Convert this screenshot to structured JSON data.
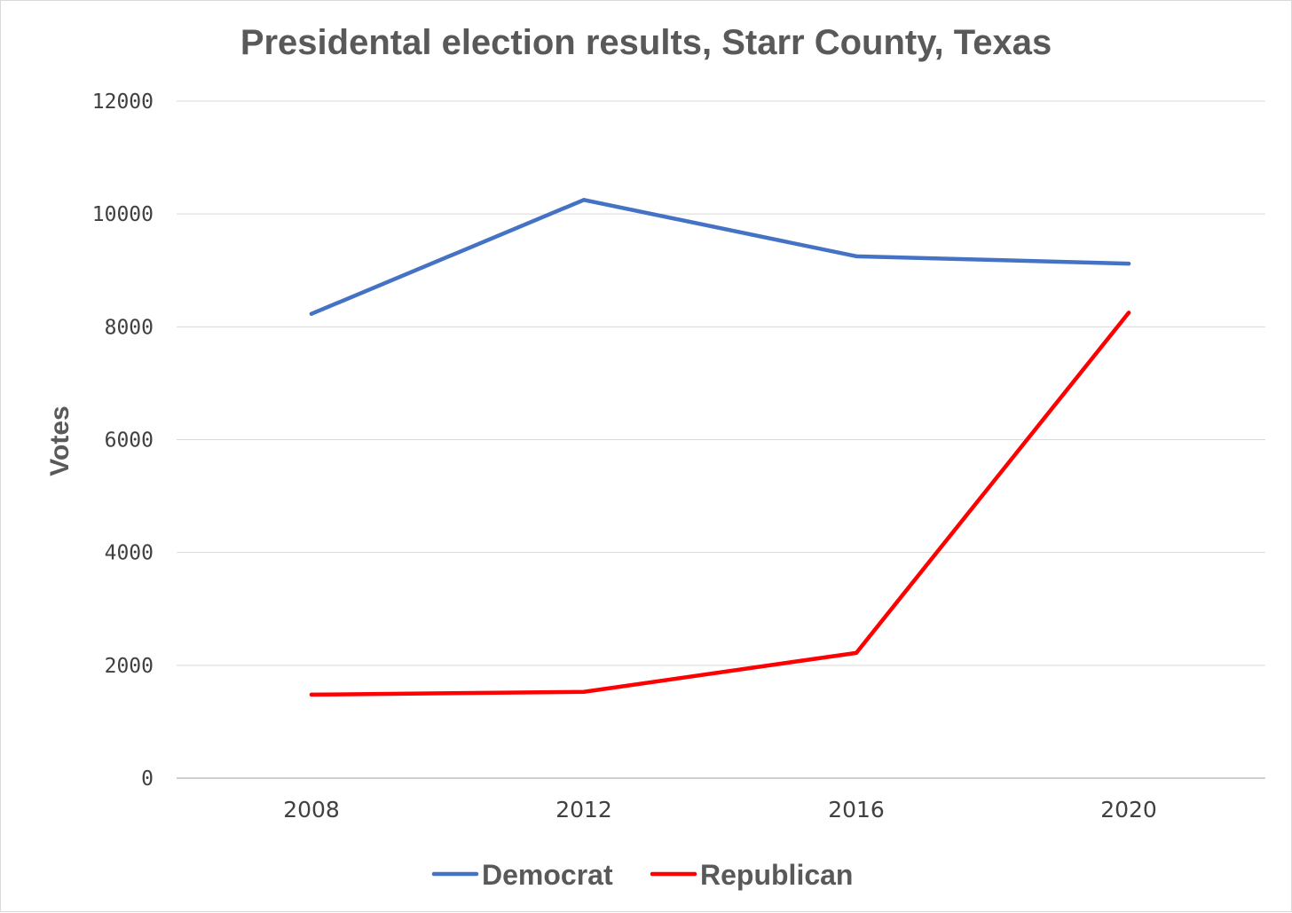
{
  "chart_data": {
    "type": "line",
    "title": "Presidental election results, Starr County, Texas",
    "xlabel": "",
    "ylabel": "Votes",
    "categories": [
      "2008",
      "2012",
      "2016",
      "2020"
    ],
    "ylim": [
      0,
      12000
    ],
    "yticks": [
      "0",
      "2000",
      "4000",
      "6000",
      "8000",
      "10000",
      "12000"
    ],
    "grid": true,
    "legend_position": "bottom",
    "series": [
      {
        "name": "Democrat",
        "color": "#4472c4",
        "values": [
          8230,
          10250,
          9250,
          9120
        ]
      },
      {
        "name": "Republican",
        "color": "#ff0000",
        "values": [
          1480,
          1530,
          2220,
          8250
        ]
      }
    ]
  }
}
